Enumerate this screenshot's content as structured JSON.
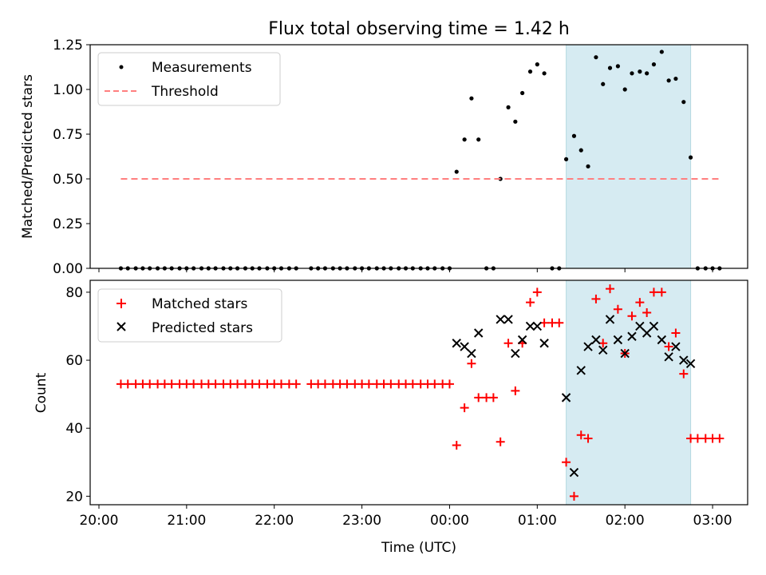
{
  "title": "Flux total observing time = 1.42 h",
  "chart_data": [
    {
      "type": "scatter",
      "ylabel": "Matched/Predicted stars",
      "xlabel": "",
      "x_unit": "hours since 20:00 UTC",
      "xlim": [
        -0.1,
        7.4
      ],
      "ylim": [
        0,
        1.25
      ],
      "yticks": [
        0.0,
        0.25,
        0.5,
        0.75,
        1.0,
        1.25
      ],
      "ytick_labels": [
        "0.00",
        "0.25",
        "0.50",
        "0.75",
        "1.00",
        "1.25"
      ],
      "legend_position": "top-left",
      "series": [
        {
          "name": "Measurements",
          "marker": "dot",
          "color": "#000000",
          "x": [
            0.25,
            0.33,
            0.42,
            0.5,
            0.58,
            0.67,
            0.75,
            0.83,
            0.92,
            1.0,
            1.08,
            1.17,
            1.25,
            1.33,
            1.42,
            1.5,
            1.58,
            1.67,
            1.75,
            1.83,
            1.92,
            2.0,
            2.08,
            2.17,
            2.25,
            2.42,
            2.5,
            2.58,
            2.67,
            2.75,
            2.83,
            2.92,
            3.0,
            3.08,
            3.17,
            3.25,
            3.33,
            3.42,
            3.5,
            3.58,
            3.67,
            3.75,
            3.83,
            3.92,
            4.0,
            4.08,
            4.17,
            4.25,
            4.33,
            4.42,
            4.5,
            4.58,
            4.67,
            4.75,
            4.83,
            4.92,
            5.0,
            5.08,
            5.17,
            5.25,
            5.33,
            5.42,
            5.5,
            5.58,
            5.67,
            5.75,
            5.83,
            5.92,
            6.0,
            6.08,
            6.17,
            6.25,
            6.33,
            6.42,
            6.5,
            6.58,
            6.67,
            6.75,
            6.83,
            6.92,
            7.0,
            7.08
          ],
          "y": [
            0,
            0,
            0,
            0,
            0,
            0,
            0,
            0,
            0,
            0,
            0,
            0,
            0,
            0,
            0,
            0,
            0,
            0,
            0,
            0,
            0,
            0,
            0,
            0,
            0,
            0,
            0,
            0,
            0,
            0,
            0,
            0,
            0,
            0,
            0,
            0,
            0,
            0,
            0,
            0,
            0,
            0,
            0,
            0,
            0,
            0.54,
            0.72,
            0.95,
            0.72,
            0,
            0,
            0.5,
            0.9,
            0.82,
            0.98,
            1.1,
            1.14,
            1.09,
            0,
            0,
            0.61,
            0.74,
            0.66,
            0.57,
            1.18,
            1.03,
            1.12,
            1.13,
            1.0,
            1.09,
            1.1,
            1.09,
            1.14,
            1.21,
            1.05,
            1.06,
            0.93,
            0.62,
            0,
            0,
            0,
            0
          ]
        },
        {
          "name": "Threshold",
          "style": "dashed",
          "color": "#ff7f7f",
          "x": [
            0.25,
            7.08
          ],
          "y": [
            0.5,
            0.5
          ]
        }
      ],
      "shaded_region_x": [
        5.33,
        6.75
      ]
    },
    {
      "type": "scatter",
      "ylabel": "Count",
      "xlabel": "Time (UTC)",
      "x_unit": "hours since 20:00 UTC",
      "xlim": [
        -0.1,
        7.4
      ],
      "ylim": [
        17.5,
        83.5
      ],
      "yticks": [
        20,
        40,
        60,
        80
      ],
      "ytick_labels": [
        "20",
        "40",
        "60",
        "80"
      ],
      "xticks": [
        0,
        1,
        2,
        3,
        4,
        5,
        6,
        7
      ],
      "xtick_labels": [
        "20:00",
        "21:00",
        "22:00",
        "23:00",
        "00:00",
        "01:00",
        "02:00",
        "03:00"
      ],
      "legend_position": "top-left",
      "series": [
        {
          "name": "Matched stars",
          "marker": "plus",
          "color": "#ff0000",
          "x": [
            0.25,
            0.33,
            0.42,
            0.5,
            0.58,
            0.67,
            0.75,
            0.83,
            0.92,
            1.0,
            1.08,
            1.17,
            1.25,
            1.33,
            1.42,
            1.5,
            1.58,
            1.67,
            1.75,
            1.83,
            1.92,
            2.0,
            2.08,
            2.17,
            2.25,
            2.42,
            2.5,
            2.58,
            2.67,
            2.75,
            2.83,
            2.92,
            3.0,
            3.08,
            3.17,
            3.25,
            3.33,
            3.42,
            3.5,
            3.58,
            3.67,
            3.75,
            3.83,
            3.92,
            4.0,
            4.08,
            4.17,
            4.25,
            4.33,
            4.42,
            4.5,
            4.58,
            4.67,
            4.75,
            4.83,
            4.92,
            5.0,
            5.08,
            5.17,
            5.25,
            5.33,
            5.42,
            5.5,
            5.58,
            5.67,
            5.75,
            5.83,
            5.92,
            6.0,
            6.08,
            6.17,
            6.25,
            6.33,
            6.42,
            6.5,
            6.58,
            6.67,
            6.75,
            6.83,
            6.92,
            7.0,
            7.08
          ],
          "y": [
            53,
            53,
            53,
            53,
            53,
            53,
            53,
            53,
            53,
            53,
            53,
            53,
            53,
            53,
            53,
            53,
            53,
            53,
            53,
            53,
            53,
            53,
            53,
            53,
            53,
            53,
            53,
            53,
            53,
            53,
            53,
            53,
            53,
            53,
            53,
            53,
            53,
            53,
            53,
            53,
            53,
            53,
            53,
            53,
            53,
            35,
            46,
            59,
            49,
            49,
            49,
            36,
            65,
            51,
            65,
            77,
            80,
            71,
            71,
            71,
            30,
            20,
            38,
            37,
            78,
            65,
            81,
            75,
            62,
            73,
            77,
            74,
            80,
            80,
            64,
            68,
            56,
            37,
            37,
            37,
            37,
            37
          ]
        },
        {
          "name": "Predicted stars",
          "marker": "x",
          "color": "#000000",
          "x": [
            4.08,
            4.17,
            4.25,
            4.33,
            4.58,
            4.67,
            4.75,
            4.83,
            4.92,
            5.0,
            5.08,
            5.33,
            5.42,
            5.5,
            5.58,
            5.67,
            5.75,
            5.83,
            5.92,
            6.0,
            6.08,
            6.17,
            6.25,
            6.33,
            6.42,
            6.5,
            6.58,
            6.67,
            6.75
          ],
          "y": [
            65,
            64,
            62,
            68,
            72,
            72,
            62,
            66,
            70,
            70,
            65,
            49,
            27,
            57,
            64,
            66,
            63,
            72,
            66,
            62,
            67,
            70,
            68,
            70,
            66,
            61,
            64,
            60,
            59
          ]
        }
      ],
      "shaded_region_x": [
        5.33,
        6.75
      ]
    }
  ]
}
